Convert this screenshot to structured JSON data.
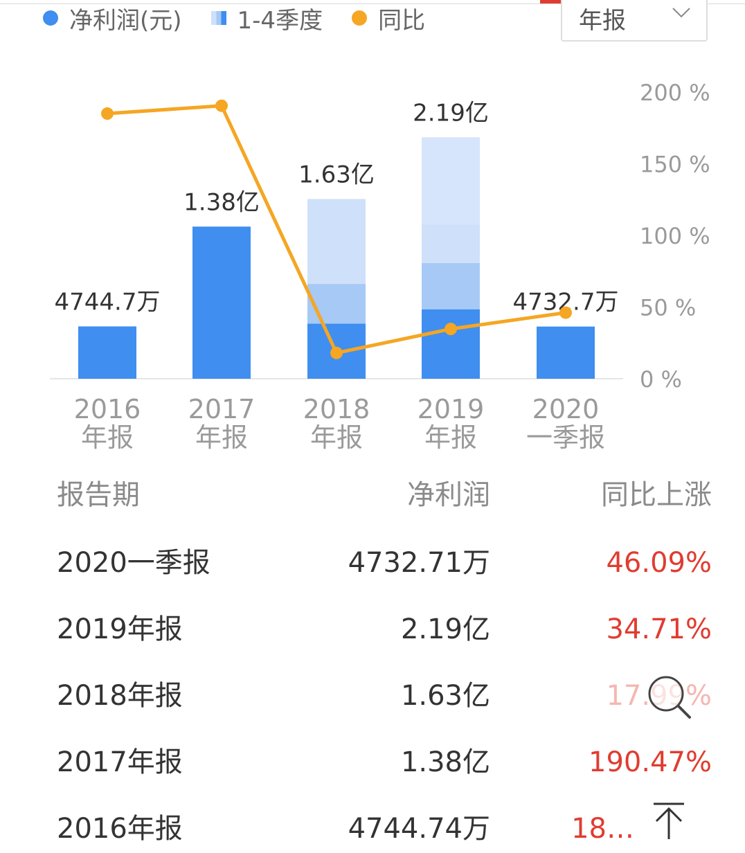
{
  "legend": {
    "items": [
      {
        "label": "净利润(元)",
        "color": "#3f8ef0",
        "type": "dot"
      },
      {
        "label": "1-4季度",
        "type": "swatch"
      },
      {
        "label": "同比",
        "color": "#f5a623",
        "type": "dot"
      }
    ]
  },
  "period_select": {
    "value": "年报"
  },
  "chart_data": {
    "type": "bar",
    "categories": [
      {
        "year": "2016",
        "kind": "年报"
      },
      {
        "year": "2017",
        "kind": "年报"
      },
      {
        "year": "2018",
        "kind": "年报"
      },
      {
        "year": "2019",
        "kind": "年报"
      },
      {
        "year": "2020",
        "kind": "一季报"
      }
    ],
    "bar_labels": [
      "4744.7万",
      "1.38亿",
      "1.63亿",
      "2.19亿",
      "4732.7万"
    ],
    "series": [
      {
        "name": "净利润(元)",
        "values": [
          4744.74,
          13800,
          16300,
          21900,
          4732.71
        ],
        "unit": "万",
        "color": "#3f8ef0"
      },
      {
        "name": "同比",
        "values": [
          185,
          190.47,
          17.99,
          34.71,
          46.09
        ],
        "unit": "%",
        "axis": "right",
        "color": "#f5a623"
      }
    ],
    "quarterly_breakdown": {
      "2018": [
        5000,
        3600,
        7700
      ],
      "2019": [
        6300,
        4200,
        3500,
        7900
      ]
    },
    "right_axis": {
      "ticks": [
        "200 %",
        "150 %",
        "100 %",
        "50 %",
        "0 %"
      ],
      "range": [
        0,
        200
      ]
    },
    "left_axis_range": [
      0,
      26000
    ],
    "colors": {
      "quarter_1": "#3f8ef0",
      "quarter_2": "#a7c9f5",
      "quarter_3": "#cfe0fa",
      "quarter_4": "#d6e5fb"
    }
  },
  "table": {
    "headers": {
      "period": "报告期",
      "profit": "净利润",
      "yoy": "同比上涨"
    },
    "rows": [
      {
        "period": "2020一季报",
        "profit": "4732.71万",
        "yoy": "46.09%"
      },
      {
        "period": "2019年报",
        "profit": "2.19亿",
        "yoy": "34.71%"
      },
      {
        "period": "2018年报",
        "profit": "1.63亿",
        "yoy": "17.99%"
      },
      {
        "period": "2017年报",
        "profit": "1.38亿",
        "yoy": "190.47%"
      },
      {
        "period": "2016年报",
        "profit": "4744.74万",
        "yoy": "18…"
      }
    ]
  },
  "icons": {
    "zoom": "magnifier-icon",
    "top": "arrow-up-icon",
    "select": "chevron-down-icon"
  }
}
